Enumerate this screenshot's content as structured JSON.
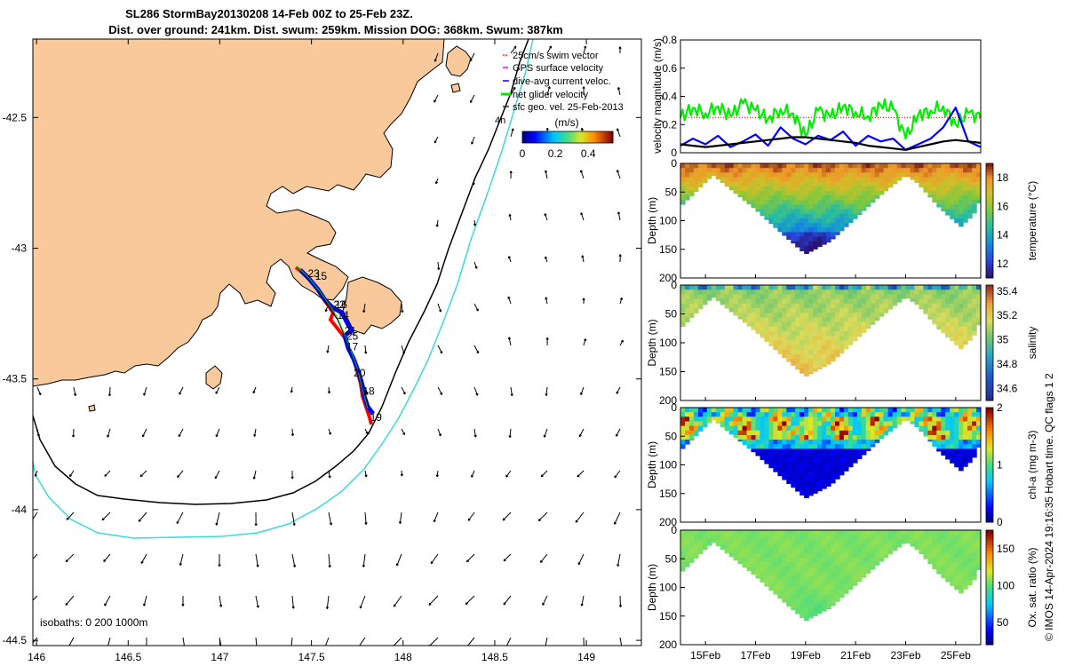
{
  "title": {
    "line1": "SL286 StormBay20130208 14-Feb 00Z to 25-Feb 23Z.",
    "line2": "Dist. over ground: 241km. Dist. swum: 259km. Mission DOG: 368km. Swum: 387km"
  },
  "colors": {
    "land": "#f9c89b",
    "isobath_200": "#000000",
    "isobath_1000": "#3dd9d9",
    "track": "#ff0000",
    "dive_avg": "#0000ff",
    "net_glider": "#00ee00",
    "swim_vector": "#ff0000",
    "gps": "#ff00ff"
  },
  "chart_data": [
    {
      "type": "map",
      "xlim": [
        145.98,
        149.3
      ],
      "ylim": [
        -44.52,
        -42.2
      ],
      "x_ticks": [
        "146",
        "146.5",
        "147",
        "147.5",
        "148",
        "148.5",
        "149"
      ],
      "y_ticks": [
        "-42.5",
        "-43",
        "-43.5",
        "-44",
        "-44.5"
      ],
      "legend": [
        "25cm/s swim vector",
        "GPS surface velocity",
        "dive-avg current veloc.",
        "net glider velocity",
        "sfc geo. vel. 25-Feb-2013"
      ],
      "legend_note": "4h",
      "colorbar": {
        "title": "(m/s)",
        "ticks": [
          "0",
          "0.2",
          "0.4"
        ],
        "range": [
          0,
          0.55
        ]
      },
      "isobaths_label": "isobaths: 0   200  1000m",
      "day_labels": [
        {
          "text": "23",
          "lon": 147.48,
          "lat": -43.11
        },
        {
          "text": "15",
          "lon": 147.52,
          "lat": -43.12
        },
        {
          "text": "22",
          "lon": 147.62,
          "lat": -43.23
        },
        {
          "text": "16",
          "lon": 147.63,
          "lat": -43.23
        },
        {
          "text": "14",
          "lon": 147.64,
          "lat": -43.27
        },
        {
          "text": "21",
          "lon": 147.68,
          "lat": -43.33
        },
        {
          "text": "25",
          "lon": 147.69,
          "lat": -43.35
        },
        {
          "text": "17",
          "lon": 147.69,
          "lat": -43.39
        },
        {
          "text": "20",
          "lon": 147.73,
          "lat": -43.49
        },
        {
          "text": "18",
          "lon": 147.78,
          "lat": -43.56
        },
        {
          "text": "19",
          "lon": 147.82,
          "lat": -43.66
        }
      ]
    },
    {
      "type": "line",
      "ylabel": "velocity magnitude (m/s)",
      "ylim": [
        0,
        0.8
      ],
      "y_ticks": [
        "0",
        "0.2",
        "0.4",
        "0.6",
        "0.8"
      ],
      "xlim": [
        14.0,
        26.0
      ],
      "swim_reference": 0.25,
      "series": [
        {
          "name": "net glider velocity",
          "color": "#00ee00",
          "x": [
            14.0,
            14.5,
            15.0,
            15.5,
            16.0,
            16.5,
            17.0,
            17.5,
            18.0,
            18.5,
            19.0,
            19.5,
            20.0,
            20.5,
            21.0,
            21.5,
            22.0,
            22.5,
            23.0,
            23.5,
            24.0,
            24.5,
            25.0,
            25.5,
            26.0
          ],
          "y": [
            0.25,
            0.32,
            0.28,
            0.33,
            0.26,
            0.35,
            0.3,
            0.24,
            0.31,
            0.28,
            0.12,
            0.3,
            0.25,
            0.33,
            0.29,
            0.26,
            0.34,
            0.31,
            0.1,
            0.27,
            0.3,
            0.33,
            0.2,
            0.28,
            0.25
          ]
        },
        {
          "name": "dive-avg current veloc.",
          "color": "#0000ff",
          "x": [
            14.0,
            14.5,
            15.0,
            15.5,
            16.0,
            16.5,
            17.0,
            17.5,
            18.0,
            18.5,
            19.0,
            19.5,
            20.0,
            20.5,
            21.0,
            21.5,
            22.0,
            22.5,
            23.0,
            23.5,
            24.0,
            24.5,
            25.0,
            25.5,
            26.0
          ],
          "y": [
            0.05,
            0.1,
            0.06,
            0.12,
            0.04,
            0.08,
            0.13,
            0.05,
            0.18,
            0.1,
            0.06,
            0.12,
            0.09,
            0.15,
            0.05,
            0.12,
            0.08,
            0.1,
            0.02,
            0.06,
            0.1,
            0.18,
            0.32,
            0.08,
            0.04
          ]
        },
        {
          "name": "sfc geo. vel. 25-Feb-2013",
          "color": "#000000",
          "x": [
            14.0,
            14.5,
            15.0,
            15.5,
            16.0,
            16.5,
            17.0,
            17.5,
            18.0,
            18.5,
            19.0,
            19.5,
            20.0,
            20.5,
            21.0,
            21.5,
            22.0,
            22.5,
            23.0,
            23.5,
            24.0,
            24.5,
            25.0,
            25.5,
            26.0
          ],
          "y": [
            0.06,
            0.05,
            0.04,
            0.05,
            0.06,
            0.07,
            0.08,
            0.09,
            0.1,
            0.11,
            0.11,
            0.1,
            0.09,
            0.08,
            0.07,
            0.05,
            0.04,
            0.03,
            0.02,
            0.04,
            0.06,
            0.08,
            0.09,
            0.08,
            0.07
          ]
        }
      ]
    },
    {
      "type": "heatmap",
      "ylabel": "Depth (m)",
      "clabel": "temperature (°C)",
      "ylim": [
        200,
        0
      ],
      "y_ticks": [
        "0",
        "50",
        "100",
        "150",
        "200"
      ],
      "c_ticks": [
        "12",
        "14",
        "16",
        "18"
      ],
      "crange": [
        11,
        19
      ],
      "cmap": "parula"
    },
    {
      "type": "heatmap",
      "ylabel": "Depth (m)",
      "clabel": "salinity",
      "ylim": [
        200,
        0
      ],
      "y_ticks": [
        "0",
        "50",
        "100",
        "150",
        "200"
      ],
      "c_ticks": [
        "34.6",
        "34.8",
        "35",
        "35.2",
        "35.4"
      ],
      "crange": [
        34.5,
        35.45
      ],
      "cmap": "haline"
    },
    {
      "type": "heatmap",
      "ylabel": "Depth (m)",
      "clabel": "chl-a (mg m-3)",
      "ylim": [
        200,
        0
      ],
      "y_ticks": [
        "0",
        "50",
        "100",
        "150",
        "200"
      ],
      "c_ticks": [
        "0",
        "1",
        "2"
      ],
      "crange": [
        0,
        2
      ],
      "cmap": "jet"
    },
    {
      "type": "heatmap",
      "ylabel": "Depth (m)",
      "clabel": "Ox. sat. ratio (%)",
      "ylim": [
        200,
        0
      ],
      "y_ticks": [
        "0",
        "50",
        "100",
        "150",
        "200"
      ],
      "c_ticks": [
        "50",
        "100",
        "150"
      ],
      "crange": [
        20,
        175
      ],
      "cmap": "jet",
      "x_ticks": [
        "15Feb",
        "17Feb",
        "19Feb",
        "21Feb",
        "23Feb",
        "25Feb"
      ]
    }
  ],
  "footer": "© IMOS 14-Apr-2024 19:16:35 Hobart time. QC flags 1  2"
}
